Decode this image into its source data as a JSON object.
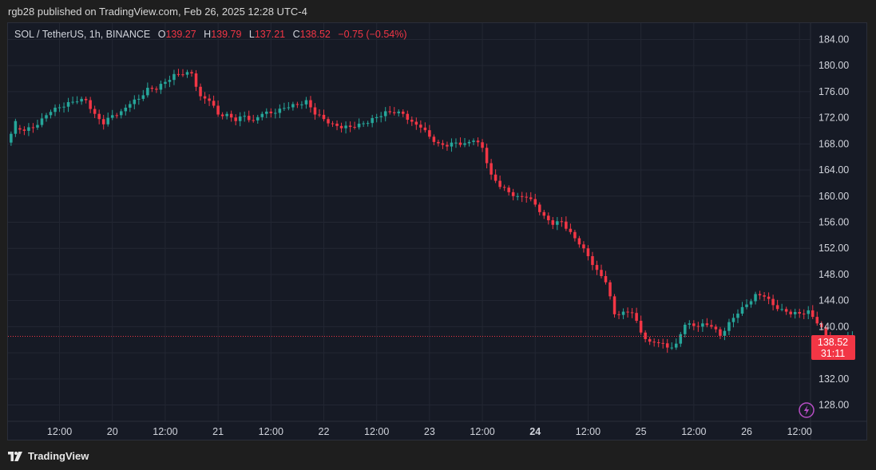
{
  "header": {
    "publish_text": "rgb28 published on TradingView.com, Feb 26, 2025 12:28 UTC-4"
  },
  "legend": {
    "symbol": "SOL / TetherUS, 1h, BINANCE",
    "o_label": "O",
    "o_value": "139.27",
    "h_label": "H",
    "h_value": "139.79",
    "l_label": "L",
    "l_value": "137.21",
    "c_label": "C",
    "c_value": "138.52",
    "change": "−0.75 (−0.54%)"
  },
  "price_label": {
    "price": "138.52",
    "countdown": "31:11"
  },
  "footer": {
    "brand": "TradingView"
  },
  "colors": {
    "up": "#26a69a",
    "down": "#f23645",
    "background": "#161a25",
    "grid": "#232733",
    "text": "#d1d4dc"
  },
  "icons": {
    "alert": "lightning-icon",
    "logo": "tradingview-logo-icon"
  },
  "chart_data": {
    "type": "candlestick",
    "interval": "1h",
    "y_ticks": [
      "184.00",
      "180.00",
      "176.00",
      "172.00",
      "168.00",
      "164.00",
      "160.00",
      "156.00",
      "152.00",
      "148.00",
      "144.00",
      "140.00",
      "136.00",
      "132.00",
      "128.00"
    ],
    "ylim": [
      125.5,
      186.5
    ],
    "x_ticks": [
      {
        "label": "12:00",
        "t": 36,
        "bold": false
      },
      {
        "label": "20",
        "t": 48,
        "bold": false
      },
      {
        "label": "12:00",
        "t": 60,
        "bold": false
      },
      {
        "label": "21",
        "t": 72,
        "bold": false
      },
      {
        "label": "12:00",
        "t": 84,
        "bold": false
      },
      {
        "label": "22",
        "t": 96,
        "bold": false
      },
      {
        "label": "12:00",
        "t": 108,
        "bold": false
      },
      {
        "label": "23",
        "t": 120,
        "bold": false
      },
      {
        "label": "12:00",
        "t": 132,
        "bold": false
      },
      {
        "label": "24",
        "t": 144,
        "bold": true
      },
      {
        "label": "12:00",
        "t": 156,
        "bold": false
      },
      {
        "label": "25",
        "t": 168,
        "bold": false
      },
      {
        "label": "12:00",
        "t": 180,
        "bold": false
      },
      {
        "label": "26",
        "t": 192,
        "bold": false
      },
      {
        "label": "12:00",
        "t": 204,
        "bold": false
      }
    ],
    "t_range": [
      24.3,
      206.5
    ],
    "last_price": 138.52,
    "candles": [
      [
        168.2,
        171.5
      ],
      [
        170.4,
        170.0
      ],
      [
        170.0,
        170.5
      ],
      [
        170.5,
        171.9
      ],
      [
        171.9,
        172.9
      ],
      [
        172.9,
        173.6
      ],
      [
        173.6,
        174.4
      ],
      [
        174.4,
        174.5
      ],
      [
        174.5,
        174.7
      ],
      [
        174.7,
        172.6
      ],
      [
        172.6,
        171.0
      ],
      [
        171.0,
        172.4
      ],
      [
        172.4,
        173.0
      ],
      [
        173.0,
        174.1
      ],
      [
        174.1,
        174.9
      ],
      [
        174.9,
        176.6
      ],
      [
        176.6,
        176.3
      ],
      [
        176.3,
        177.5
      ],
      [
        177.5,
        178.7
      ],
      [
        178.7,
        178.6
      ],
      [
        178.6,
        178.8
      ],
      [
        178.8,
        175.3
      ],
      [
        175.3,
        174.6
      ],
      [
        174.6,
        172.5
      ],
      [
        172.5,
        172.6
      ],
      [
        172.6,
        171.5
      ],
      [
        171.5,
        172.3
      ],
      [
        172.3,
        171.6
      ],
      [
        171.6,
        172.6
      ],
      [
        172.6,
        172.7
      ],
      [
        172.7,
        173.4
      ],
      [
        173.4,
        173.6
      ],
      [
        173.6,
        174.0
      ],
      [
        174.0,
        174.7
      ],
      [
        174.7,
        172.5
      ],
      [
        172.5,
        171.8
      ],
      [
        171.8,
        171.1
      ],
      [
        171.1,
        170.4
      ],
      [
        170.4,
        170.6
      ],
      [
        170.6,
        171.1
      ],
      [
        171.1,
        171.2
      ],
      [
        171.2,
        172.1
      ],
      [
        172.1,
        173.0
      ],
      [
        173.0,
        172.7
      ],
      [
        172.7,
        172.6
      ],
      [
        172.6,
        171.4
      ],
      [
        171.4,
        170.5
      ],
      [
        170.5,
        169.1
      ],
      [
        169.1,
        168.1
      ],
      [
        168.1,
        167.6
      ],
      [
        167.6,
        168.2
      ],
      [
        168.2,
        168.1
      ],
      [
        168.1,
        168.5
      ],
      [
        168.5,
        167.4
      ],
      [
        167.4,
        163.3
      ],
      [
        163.3,
        161.4
      ],
      [
        161.4,
        160.6
      ],
      [
        160.6,
        160.0
      ],
      [
        160.0,
        159.8
      ],
      [
        159.8,
        158.7
      ],
      [
        158.7,
        157.0
      ],
      [
        157.0,
        155.6
      ],
      [
        155.6,
        156.1
      ],
      [
        156.1,
        154.5
      ],
      [
        154.5,
        152.6
      ],
      [
        152.6,
        150.8
      ],
      [
        150.8,
        148.7
      ],
      [
        148.7,
        146.8
      ],
      [
        146.8,
        141.9
      ],
      [
        141.9,
        142.3
      ],
      [
        142.3,
        142.1
      ],
      [
        142.1,
        139.1
      ],
      [
        139.1,
        137.7
      ],
      [
        137.7,
        137.5
      ],
      [
        137.5,
        136.8
      ],
      [
        136.8,
        137.4
      ],
      [
        137.4,
        140.3
      ],
      [
        140.3,
        140.1
      ],
      [
        140.1,
        140.5
      ],
      [
        140.5,
        140.0
      ],
      [
        140.0,
        138.6
      ],
      [
        138.6,
        140.7
      ],
      [
        140.7,
        142.0
      ],
      [
        142.0,
        143.4
      ],
      [
        143.4,
        145.0
      ],
      [
        145.0,
        144.6
      ],
      [
        144.6,
        143.3
      ],
      [
        143.3,
        142.7
      ],
      [
        142.7,
        141.9
      ],
      [
        141.9,
        142.0
      ],
      [
        142.0,
        142.5
      ],
      [
        142.5,
        140.5
      ],
      [
        140.5,
        138.7
      ],
      [
        138.7,
        138.0
      ],
      [
        138.0,
        137.7
      ],
      [
        137.7,
        138.5
      ]
    ]
  }
}
